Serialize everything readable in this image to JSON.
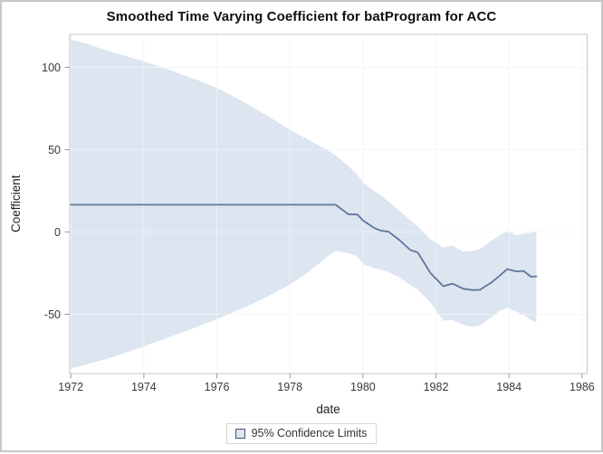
{
  "chart_data": {
    "type": "line",
    "title": "Smoothed Time Varying Coefficient for batProgram for ACC",
    "xlabel": "date",
    "ylabel": "Coefficient",
    "x_ticks": [
      1972,
      1974,
      1976,
      1978,
      1980,
      1982,
      1984,
      1986
    ],
    "y_ticks": [
      -50,
      0,
      50,
      100
    ],
    "xlim": [
      1971.97,
      1986.14
    ],
    "ylim": [
      -86,
      120
    ],
    "grid": true,
    "legend_position": "bottom-center",
    "legend": [
      {
        "label": "95% Confidence Limits"
      }
    ],
    "colors": {
      "line": "#5f7699",
      "band_fill": "#dce5f0",
      "swatch_border": "#42526b",
      "gridline": "#edeff1",
      "frame": "#c3c8cc",
      "tick": "#979b9e",
      "tick_label": "#37393b",
      "figure_border": "#c7c7c7"
    },
    "series": [
      {
        "name": "coefficient",
        "kind": "line",
        "x": [
          1972.0,
          1979.25,
          1979.6,
          1979.85,
          1980.0,
          1980.3,
          1980.5,
          1980.7,
          1981.0,
          1981.3,
          1981.5,
          1981.85,
          1982.2,
          1982.45,
          1982.75,
          1983.0,
          1983.2,
          1983.5,
          1983.75,
          1983.95,
          1984.2,
          1984.4,
          1984.6,
          1984.75
        ],
        "y": [
          16.5,
          16.5,
          10.8,
          10.5,
          7.0,
          2.5,
          0.7,
          0.2,
          -5.0,
          -11.0,
          -12.5,
          -25.0,
          -33.0,
          -31.4,
          -34.5,
          -35.3,
          -35.2,
          -31.0,
          -26.5,
          -22.6,
          -24.0,
          -23.7,
          -27.2,
          -27.0
        ]
      },
      {
        "name": "95pct-confidence-band",
        "kind": "band",
        "x": [
          1972.0,
          1972.5,
          1973.0,
          1973.5,
          1974.0,
          1974.5,
          1975.0,
          1975.5,
          1976.0,
          1976.5,
          1977.0,
          1977.5,
          1978.0,
          1978.5,
          1979.0,
          1979.25,
          1979.6,
          1979.85,
          1980.0,
          1980.3,
          1980.5,
          1980.7,
          1981.0,
          1981.3,
          1981.5,
          1981.85,
          1982.2,
          1982.45,
          1982.75,
          1983.0,
          1983.2,
          1983.5,
          1983.75,
          1983.95,
          1984.2,
          1984.4,
          1984.6,
          1984.75
        ],
        "upper": [
          117,
          113.8,
          110,
          107,
          103.5,
          100,
          96,
          92,
          87.5,
          81.8,
          75.5,
          69,
          62,
          56,
          50,
          46.5,
          40,
          34.5,
          30,
          25,
          22,
          18.5,
          13,
          7,
          3.5,
          -4.5,
          -9.5,
          -8.2,
          -12,
          -11.5,
          -10.5,
          -5.5,
          -2,
          0.5,
          -2,
          -1,
          -0.5,
          0.5
        ],
        "lower": [
          -83,
          -80,
          -77,
          -73.3,
          -69.5,
          -65.5,
          -61.5,
          -57.3,
          -53,
          -48.3,
          -43.5,
          -38,
          -32,
          -24.5,
          -15.5,
          -11.5,
          -13,
          -15,
          -19.5,
          -22,
          -23,
          -24.5,
          -27.5,
          -32.5,
          -35,
          -43,
          -54,
          -53.5,
          -56.5,
          -57.5,
          -57,
          -52,
          -48,
          -46,
          -48.5,
          -50.5,
          -53.5,
          -55
        ]
      }
    ]
  }
}
